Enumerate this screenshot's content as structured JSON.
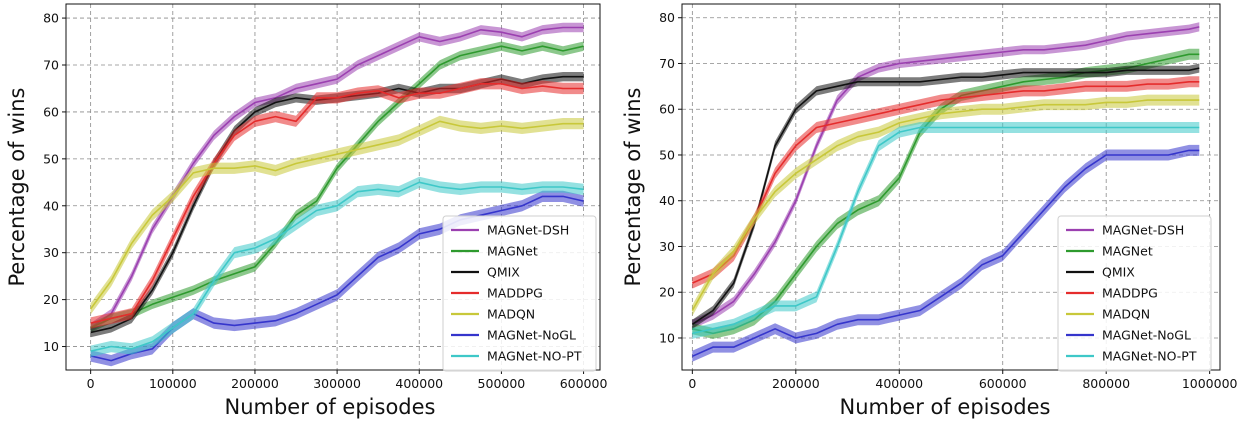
{
  "chart_data": [
    {
      "type": "line",
      "xlabel": "Number of episodes",
      "ylabel": "Percentage of wins",
      "xlim": [
        -30000,
        620000
      ],
      "ylim": [
        5,
        83
      ],
      "xticks": [
        0,
        100000,
        200000,
        300000,
        400000,
        500000,
        600000
      ],
      "xtick_labels": [
        "0",
        "100000",
        "200000",
        "300000",
        "400000",
        "500000",
        "600000"
      ],
      "yticks": [
        10,
        20,
        30,
        40,
        50,
        60,
        70,
        80
      ],
      "ytick_labels": [
        "10",
        "20",
        "30",
        "40",
        "50",
        "60",
        "70",
        "80"
      ],
      "grid": true,
      "legend_position": "bottom-right",
      "series": [
        {
          "name": "MAGNet-DSH",
          "color": "#9b40b0",
          "band": 1.0,
          "x": [
            0,
            25000,
            50000,
            75000,
            100000,
            125000,
            150000,
            175000,
            200000,
            225000,
            250000,
            275000,
            300000,
            325000,
            350000,
            375000,
            400000,
            425000,
            450000,
            475000,
            500000,
            525000,
            550000,
            575000,
            600000
          ],
          "y": [
            14,
            17,
            25,
            35,
            42,
            49,
            55,
            59,
            62,
            63,
            65,
            66,
            67,
            70,
            72,
            74,
            76,
            75,
            76,
            77.5,
            77,
            76,
            77.5,
            78,
            78
          ]
        },
        {
          "name": "MAGNet",
          "color": "#2e9a2e",
          "band": 1.0,
          "x": [
            0,
            25000,
            50000,
            75000,
            100000,
            125000,
            150000,
            175000,
            200000,
            225000,
            250000,
            275000,
            300000,
            325000,
            350000,
            375000,
            400000,
            425000,
            450000,
            475000,
            500000,
            525000,
            550000,
            575000,
            600000
          ],
          "y": [
            14,
            16,
            17,
            19,
            20.5,
            22,
            24,
            25.5,
            27,
            32,
            38,
            41,
            48,
            53,
            58,
            62,
            66,
            70,
            72,
            73,
            74,
            73,
            74,
            73,
            74
          ]
        },
        {
          "name": "QMIX",
          "color": "#111111",
          "band": 1.0,
          "x": [
            0,
            25000,
            50000,
            75000,
            100000,
            125000,
            150000,
            175000,
            200000,
            225000,
            250000,
            275000,
            300000,
            325000,
            350000,
            375000,
            400000,
            425000,
            450000,
            475000,
            500000,
            525000,
            550000,
            575000,
            600000
          ],
          "y": [
            13,
            14,
            16,
            22,
            30,
            40,
            49,
            56,
            60,
            62,
            63,
            62.5,
            63,
            63.5,
            64,
            65,
            64,
            65,
            65,
            66,
            67,
            66,
            67,
            67.5,
            67.5
          ]
        },
        {
          "name": "MADDPG",
          "color": "#e52c2c",
          "band": 1.2,
          "x": [
            0,
            25000,
            50000,
            75000,
            100000,
            125000,
            150000,
            175000,
            200000,
            225000,
            250000,
            275000,
            300000,
            325000,
            350000,
            375000,
            400000,
            425000,
            450000,
            475000,
            500000,
            525000,
            550000,
            575000,
            600000
          ],
          "y": [
            15,
            16,
            17,
            24,
            33,
            42,
            49,
            55,
            58,
            59,
            58,
            63,
            63,
            64,
            64.5,
            63,
            64,
            64,
            65,
            66,
            66,
            65,
            65.5,
            65,
            65
          ]
        },
        {
          "name": "MADQN",
          "color": "#c8c83a",
          "band": 1.2,
          "x": [
            0,
            25000,
            50000,
            75000,
            100000,
            125000,
            150000,
            175000,
            200000,
            225000,
            250000,
            275000,
            300000,
            325000,
            350000,
            375000,
            400000,
            425000,
            450000,
            475000,
            500000,
            525000,
            550000,
            575000,
            600000
          ],
          "y": [
            18,
            24,
            32,
            38,
            42,
            47,
            48,
            48,
            48.5,
            47.5,
            49,
            50,
            51,
            52,
            53,
            54,
            56,
            58,
            57,
            56.5,
            57,
            56.5,
            57,
            57.5,
            57.5
          ]
        },
        {
          "name": "MAGNet-NoGL",
          "color": "#3535cc",
          "band": 1.2,
          "x": [
            0,
            25000,
            50000,
            75000,
            100000,
            125000,
            150000,
            175000,
            200000,
            225000,
            250000,
            275000,
            300000,
            325000,
            350000,
            375000,
            400000,
            425000,
            450000,
            475000,
            500000,
            525000,
            550000,
            575000,
            600000
          ],
          "y": [
            8,
            7,
            8.5,
            9.5,
            14,
            17,
            15,
            14.5,
            15,
            15.5,
            17,
            19,
            21,
            25,
            29,
            31,
            34,
            35,
            37,
            38,
            39,
            40,
            42,
            42,
            41
          ]
        },
        {
          "name": "MAGNet-NO-PT",
          "color": "#3ec8c8",
          "band": 1.2,
          "x": [
            0,
            25000,
            50000,
            75000,
            100000,
            125000,
            150000,
            175000,
            200000,
            225000,
            250000,
            275000,
            300000,
            325000,
            350000,
            375000,
            400000,
            425000,
            450000,
            475000,
            500000,
            525000,
            550000,
            575000,
            600000
          ],
          "y": [
            9,
            10,
            9.5,
            11,
            14,
            17,
            24,
            30,
            31,
            33,
            36,
            39,
            40,
            43,
            43.5,
            43,
            45,
            44,
            43.5,
            44,
            44,
            43.5,
            44,
            44,
            43.5
          ]
        }
      ]
    },
    {
      "type": "line",
      "xlabel": "Number of episodes",
      "ylabel": "Percentage of wins",
      "xlim": [
        -20000,
        1020000
      ],
      "ylim": [
        3,
        83
      ],
      "xticks": [
        0,
        200000,
        400000,
        600000,
        800000,
        1000000
      ],
      "xtick_labels": [
        "0",
        "200000",
        "400000",
        "600000",
        "800000",
        "1000000"
      ],
      "yticks": [
        10,
        20,
        30,
        40,
        50,
        60,
        70,
        80
      ],
      "ytick_labels": [
        "10",
        "20",
        "30",
        "40",
        "50",
        "60",
        "70",
        "80"
      ],
      "grid": true,
      "legend_position": "bottom-right",
      "series": [
        {
          "name": "MAGNet-DSH",
          "color": "#9b40b0",
          "band": 1.0,
          "x": [
            0,
            40000,
            80000,
            120000,
            160000,
            200000,
            240000,
            280000,
            320000,
            360000,
            400000,
            440000,
            480000,
            520000,
            560000,
            600000,
            640000,
            680000,
            720000,
            760000,
            800000,
            840000,
            880000,
            920000,
            960000,
            980000
          ],
          "y": [
            13,
            15,
            18,
            24,
            31,
            40,
            52,
            62,
            67,
            69,
            70,
            70.5,
            71,
            71.5,
            72,
            72.5,
            73,
            73,
            73.5,
            74,
            75,
            76,
            76.5,
            77,
            77.5,
            78
          ]
        },
        {
          "name": "MAGNet",
          "color": "#2e9a2e",
          "band": 1.2,
          "x": [
            0,
            40000,
            80000,
            120000,
            160000,
            200000,
            240000,
            280000,
            320000,
            360000,
            400000,
            440000,
            480000,
            520000,
            560000,
            600000,
            640000,
            680000,
            720000,
            760000,
            800000,
            840000,
            880000,
            920000,
            960000,
            980000
          ],
          "y": [
            12,
            11,
            12,
            14,
            18,
            24,
            30,
            35,
            38,
            40,
            45,
            55,
            60,
            63,
            64,
            65,
            66,
            66.5,
            67,
            68,
            68.5,
            69,
            70,
            71,
            72,
            72
          ]
        },
        {
          "name": "QMIX",
          "color": "#111111",
          "band": 1.0,
          "x": [
            0,
            40000,
            80000,
            120000,
            160000,
            200000,
            240000,
            280000,
            320000,
            360000,
            400000,
            440000,
            480000,
            520000,
            560000,
            600000,
            640000,
            680000,
            720000,
            760000,
            800000,
            840000,
            880000,
            920000,
            960000,
            980000
          ],
          "y": [
            13,
            16,
            22,
            35,
            52,
            60,
            64,
            65,
            66,
            66,
            66,
            66,
            66.5,
            67,
            67,
            67.5,
            68,
            68,
            68,
            68,
            68,
            68.5,
            68.5,
            68.5,
            68.5,
            69
          ]
        },
        {
          "name": "MADDPG",
          "color": "#e52c2c",
          "band": 1.2,
          "x": [
            0,
            40000,
            80000,
            120000,
            160000,
            200000,
            240000,
            280000,
            320000,
            360000,
            400000,
            440000,
            480000,
            520000,
            560000,
            600000,
            640000,
            680000,
            720000,
            760000,
            800000,
            840000,
            880000,
            920000,
            960000,
            980000
          ],
          "y": [
            22,
            24,
            28,
            36,
            46,
            52,
            56,
            57,
            58,
            59,
            60,
            61,
            62,
            62.5,
            63,
            63.5,
            64,
            64,
            64.5,
            65,
            65,
            65,
            65.5,
            65.5,
            66,
            66
          ]
        },
        {
          "name": "MADQN",
          "color": "#c8c83a",
          "band": 1.2,
          "x": [
            0,
            40000,
            80000,
            120000,
            160000,
            200000,
            240000,
            280000,
            320000,
            360000,
            400000,
            440000,
            480000,
            520000,
            560000,
            600000,
            640000,
            680000,
            720000,
            760000,
            800000,
            840000,
            880000,
            920000,
            960000,
            980000
          ],
          "y": [
            16,
            24,
            29,
            36,
            42,
            46,
            49,
            52,
            54,
            55,
            57,
            58,
            59,
            59.5,
            60,
            60,
            60.5,
            61,
            61,
            61,
            61.5,
            61.5,
            62,
            62,
            62,
            62
          ]
        },
        {
          "name": "MAGNet-NoGL",
          "color": "#3535cc",
          "band": 1.2,
          "x": [
            0,
            40000,
            80000,
            120000,
            160000,
            200000,
            240000,
            280000,
            320000,
            360000,
            400000,
            440000,
            480000,
            520000,
            560000,
            600000,
            640000,
            680000,
            720000,
            760000,
            800000,
            840000,
            880000,
            920000,
            960000,
            980000
          ],
          "y": [
            6,
            8,
            8,
            10,
            12,
            10,
            11,
            13,
            14,
            14,
            15,
            16,
            19,
            22,
            26,
            28,
            33,
            38,
            43,
            47,
            50,
            50,
            50,
            50,
            51,
            51
          ]
        },
        {
          "name": "MAGNet-NO-PT",
          "color": "#3ec8c8",
          "band": 1.2,
          "x": [
            0,
            40000,
            80000,
            120000,
            160000,
            200000,
            240000,
            280000,
            320000,
            360000,
            400000,
            440000,
            480000,
            520000,
            560000,
            600000,
            640000,
            680000,
            720000,
            760000,
            800000,
            840000,
            880000,
            920000,
            960000,
            980000
          ],
          "y": [
            11,
            12,
            13,
            15,
            17,
            17,
            19,
            30,
            42,
            52,
            55,
            56,
            56,
            56,
            56,
            56,
            56,
            56,
            56,
            56,
            56,
            56,
            56,
            56,
            56,
            56
          ]
        }
      ]
    }
  ]
}
